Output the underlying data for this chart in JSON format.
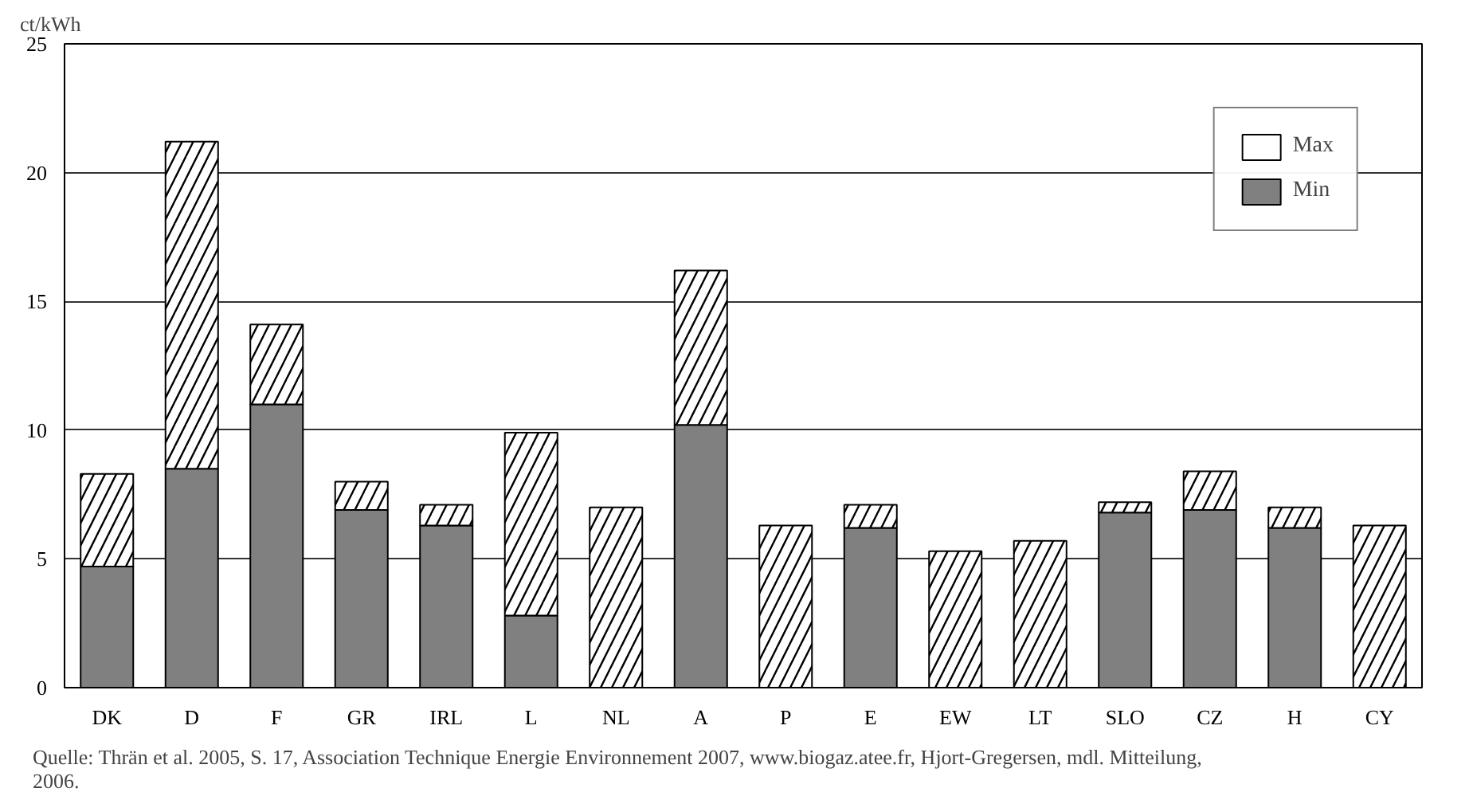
{
  "chart_data": {
    "type": "bar",
    "stacked": true,
    "ylabel": "ct/kWh",
    "categories": [
      "DK",
      "D",
      "F",
      "GR",
      "IRL",
      "L",
      "NL",
      "A",
      "P",
      "E",
      "EW",
      "LT",
      "SLO",
      "CZ",
      "H",
      "CY"
    ],
    "series": [
      {
        "name": "Min",
        "color": "#808080",
        "values": [
          4.7,
          8.5,
          11.0,
          6.9,
          6.3,
          2.8,
          null,
          10.2,
          null,
          6.2,
          null,
          null,
          6.8,
          6.9,
          6.2,
          null
        ]
      },
      {
        "name": "Max",
        "color": "#ffffff",
        "values": [
          3.6,
          12.7,
          3.1,
          1.1,
          0.8,
          7.1,
          7.0,
          6.0,
          6.3,
          0.9,
          5.3,
          5.7,
          0.4,
          1.5,
          0.8,
          6.3
        ]
      }
    ],
    "ylim": [
      0,
      25
    ],
    "yticks": [
      0,
      5,
      10,
      15,
      20,
      25
    ],
    "grid": "y",
    "legend": "top right",
    "annotations": [
      "Quelle:  Thrän et al. 2005, S. 17, Association Technique Energie Environnement 2007, www.biogaz.atee.fr, Hjort-Gregersen, mdl. Mitteilung, 2006."
    ]
  }
}
